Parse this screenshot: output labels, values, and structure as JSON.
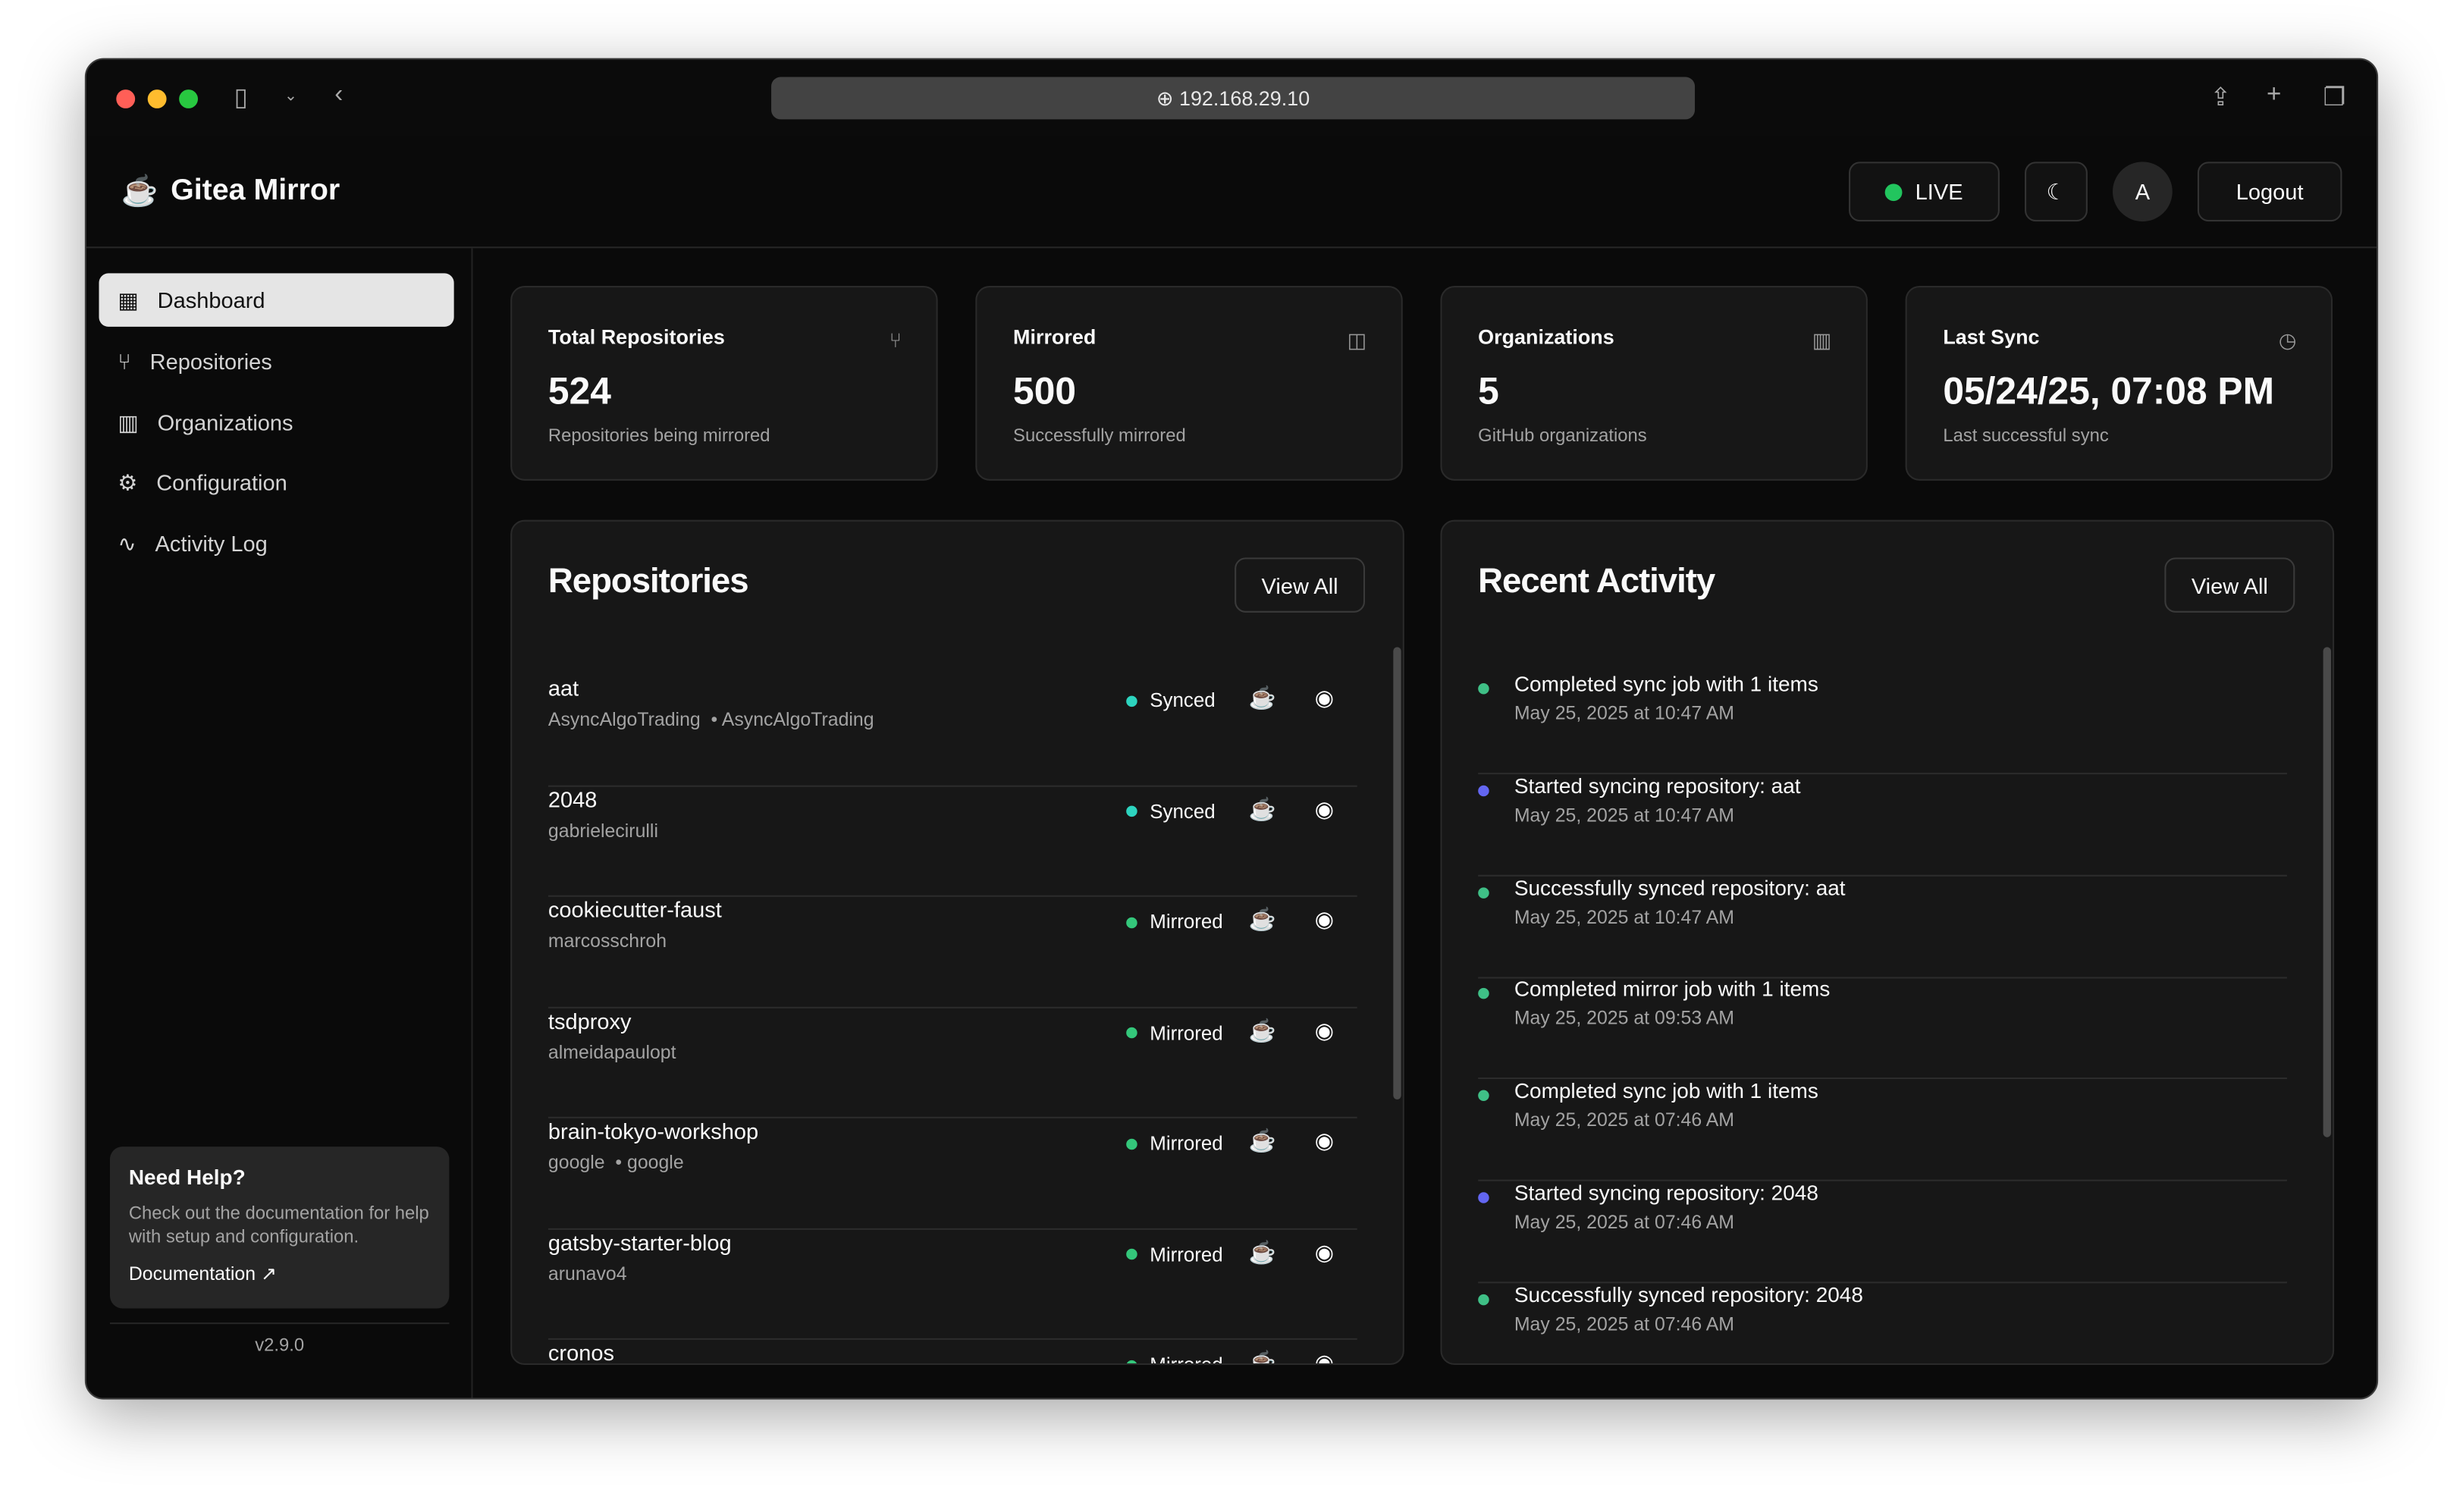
{
  "browser": {
    "url": "192.168.29.10"
  },
  "header": {
    "brand": "Gitea Mirror",
    "live_label": "LIVE",
    "avatar_initial": "A",
    "logout_label": "Logout"
  },
  "sidebar": {
    "items": [
      {
        "label": "Dashboard",
        "icon": "dashboard-icon",
        "active": true
      },
      {
        "label": "Repositories",
        "icon": "git-fork-icon"
      },
      {
        "label": "Organizations",
        "icon": "building-icon"
      },
      {
        "label": "Configuration",
        "icon": "gear-icon"
      },
      {
        "label": "Activity Log",
        "icon": "activity-icon"
      }
    ],
    "help": {
      "title": "Need Help?",
      "text": "Check out the documentation for help with setup and configuration.",
      "link": "Documentation"
    },
    "version": "v2.9.0"
  },
  "stats": [
    {
      "title": "Total Repositories",
      "value": "524",
      "sub": "Repositories being mirrored",
      "icon": "git-fork-icon"
    },
    {
      "title": "Mirrored",
      "value": "500",
      "sub": "Successfully mirrored",
      "icon": "mirror-icon"
    },
    {
      "title": "Organizations",
      "value": "5",
      "sub": "GitHub organizations",
      "icon": "building-icon"
    },
    {
      "title": "Last Sync",
      "value": "05/24/25, 07:08 PM",
      "sub": "Last successful sync",
      "icon": "clock-icon"
    }
  ],
  "repositories": {
    "title": "Repositories",
    "view_all": "View All",
    "items": [
      {
        "name": "aat",
        "owner": "AsyncAlgoTrading",
        "org": "AsyncAlgoTrading",
        "status": "Synced"
      },
      {
        "name": "2048",
        "owner": "gabrielecirulli",
        "org": "",
        "status": "Synced"
      },
      {
        "name": "cookiecutter-faust",
        "owner": "marcosschroh",
        "org": "",
        "status": "Mirrored"
      },
      {
        "name": "tsdproxy",
        "owner": "almeidapaulopt",
        "org": "",
        "status": "Mirrored"
      },
      {
        "name": "brain-tokyo-workshop",
        "owner": "google",
        "org": "google",
        "status": "Mirrored"
      },
      {
        "name": "gatsby-starter-blog",
        "owner": "arunavo4",
        "org": "",
        "status": "Mirrored"
      },
      {
        "name": "cronos",
        "owner": "",
        "org": "",
        "status": "Mirrored"
      }
    ]
  },
  "activity": {
    "title": "Recent Activity",
    "view_all": "View All",
    "items": [
      {
        "message": "Completed sync job with 1 items",
        "time": "May 25, 2025 at 10:47 AM",
        "type": "success"
      },
      {
        "message": "Started syncing repository: aat",
        "time": "May 25, 2025 at 10:47 AM",
        "type": "info"
      },
      {
        "message": "Successfully synced repository: aat",
        "time": "May 25, 2025 at 10:47 AM",
        "type": "success"
      },
      {
        "message": "Completed mirror job with 1 items",
        "time": "May 25, 2025 at 09:53 AM",
        "type": "success"
      },
      {
        "message": "Completed sync job with 1 items",
        "time": "May 25, 2025 at 07:46 AM",
        "type": "success"
      },
      {
        "message": "Started syncing repository: 2048",
        "time": "May 25, 2025 at 07:46 AM",
        "type": "info"
      },
      {
        "message": "Successfully synced repository: 2048",
        "time": "May 25, 2025 at 07:46 AM",
        "type": "success"
      }
    ]
  },
  "colors": {
    "synced": "#2dd4bf",
    "mirrored": "#34c77b",
    "success": "#3fbf86",
    "info": "#6366f1",
    "live": "#22c55e"
  }
}
